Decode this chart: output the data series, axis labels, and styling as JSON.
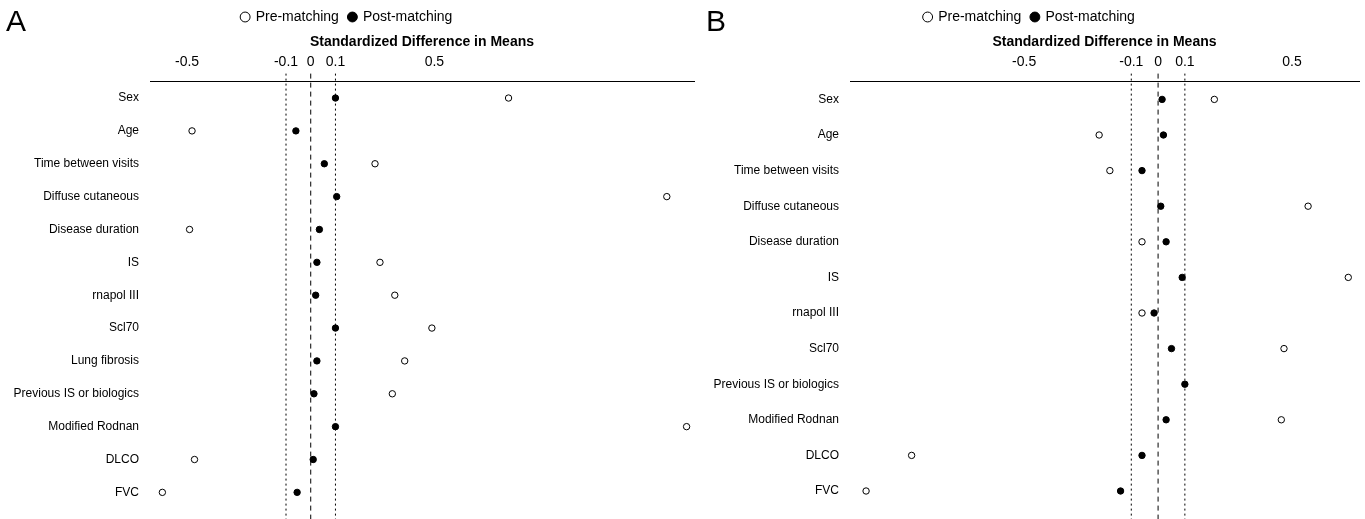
{
  "chart_data": [
    {
      "type": "scatter",
      "title": "A",
      "xlabel": "Standardized Difference in Means",
      "categories": [
        "Sex",
        "Age",
        "Time between visits",
        "Diffuse cutaneous",
        "Disease duration",
        "IS",
        "rnapol III",
        "Scl70",
        "Lung fibrosis",
        "Previous IS or biologics",
        "Modified Rodnan",
        "DLCO",
        "FVC"
      ],
      "series": [
        {
          "name": "Pre-matching",
          "color": "#ffffff",
          "values": [
            0.8,
            -0.48,
            0.26,
            1.44,
            -0.49,
            0.28,
            0.34,
            0.49,
            0.38,
            0.33,
            1.52,
            -0.47,
            -0.6
          ]
        },
        {
          "name": "Post-matching",
          "color": "#000000",
          "values": [
            0.1,
            -0.06,
            0.055,
            0.105,
            0.035,
            0.025,
            0.02,
            0.1,
            0.025,
            0.013,
            0.1,
            0.01,
            -0.055
          ]
        }
      ],
      "xlim": [
        -0.65,
        1.55
      ],
      "xticks": [
        -0.5,
        -0.1,
        0,
        0.1,
        0.5
      ],
      "ref_lines": [
        {
          "axis": "x",
          "value": 0,
          "line_style": "dashed"
        },
        {
          "axis": "x",
          "value": -0.1,
          "line_style": "dotted"
        },
        {
          "axis": "x",
          "value": 0.1,
          "line_style": "dotted"
        }
      ],
      "legend": "top",
      "marker": "circle",
      "grid": false,
      "orientation": "horizontal"
    },
    {
      "type": "scatter",
      "title": "B",
      "xlabel": "Standardized Difference in Means",
      "categories": [
        "Sex",
        "Age",
        "Time between visits",
        "Diffuse cutaneous",
        "Disease duration",
        "IS",
        "rnapol III",
        "Scl70",
        "Previous IS or biologics",
        "Modified Rodnan",
        "DLCO",
        "FVC"
      ],
      "series": [
        {
          "name": "Pre-matching",
          "color": "#ffffff",
          "values": [
            0.21,
            -0.22,
            -0.18,
            0.56,
            -0.06,
            0.71,
            -0.06,
            0.47,
            null,
            0.46,
            -0.92,
            -1.09
          ]
        },
        {
          "name": "Post-matching",
          "color": "#000000",
          "values": [
            0.015,
            0.02,
            -0.06,
            0.01,
            0.03,
            0.09,
            -0.015,
            0.05,
            0.1,
            0.03,
            -0.06,
            -0.14
          ]
        }
      ],
      "xlim": [
        -1.15,
        0.75
      ],
      "xticks": [
        -0.5,
        -0.1,
        0,
        0.1,
        0.5
      ],
      "ref_lines": [
        {
          "axis": "x",
          "value": 0,
          "line_style": "dashed"
        },
        {
          "axis": "x",
          "value": -0.1,
          "line_style": "dotted"
        },
        {
          "axis": "x",
          "value": 0.1,
          "line_style": "dotted"
        }
      ],
      "legend": "top",
      "marker": "circle",
      "grid": false,
      "orientation": "horizontal"
    }
  ]
}
